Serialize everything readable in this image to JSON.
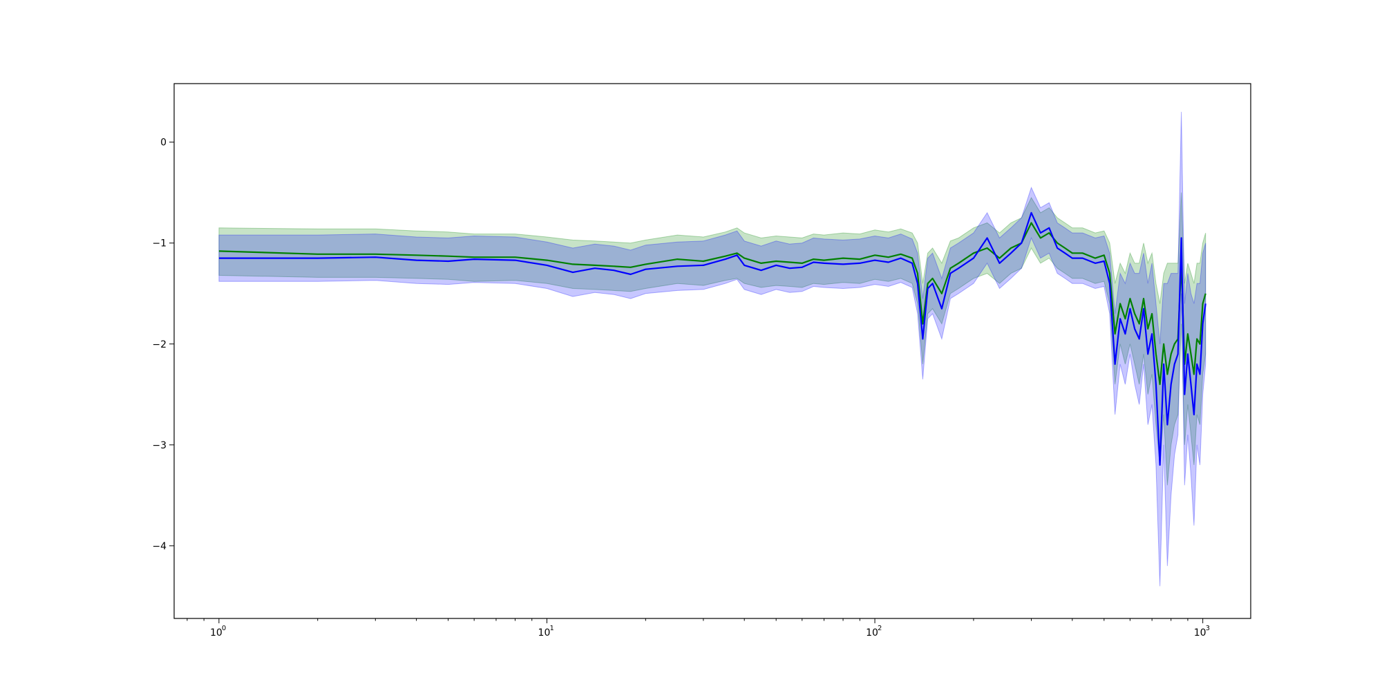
{
  "chart_data": {
    "type": "line",
    "title": "",
    "xlabel": "",
    "ylabel": "",
    "xscale": "log",
    "xlim": [
      0.73,
      1400
    ],
    "ylim": [
      -4.72,
      0.58
    ],
    "grid": false,
    "legend": "none",
    "x_ticks": [
      {
        "value": 1,
        "base": "10",
        "exp": "0"
      },
      {
        "value": 10,
        "base": "10",
        "exp": "1"
      },
      {
        "value": 100,
        "base": "10",
        "exp": "2"
      },
      {
        "value": 1000,
        "base": "10",
        "exp": "3"
      }
    ],
    "y_ticks": [
      {
        "value": 0,
        "label": "0"
      },
      {
        "value": -1,
        "label": "−1"
      },
      {
        "value": -2,
        "label": "−2"
      },
      {
        "value": -3,
        "label": "−3"
      },
      {
        "value": -4,
        "label": "−4"
      }
    ],
    "series": [
      {
        "color": "#008000",
        "band_color": "#008000",
        "band_opacity": 0.22,
        "x": [
          1,
          2,
          3,
          4,
          5,
          6,
          8,
          10,
          12,
          14,
          16,
          18,
          20,
          25,
          30,
          35,
          38,
          40,
          45,
          50,
          55,
          60,
          65,
          70,
          80,
          90,
          100,
          110,
          120,
          130,
          135,
          140,
          145,
          150,
          160,
          170,
          180,
          200,
          220,
          240,
          260,
          280,
          300,
          320,
          340,
          360,
          380,
          400,
          430,
          470,
          500,
          520,
          540,
          560,
          580,
          600,
          620,
          640,
          660,
          680,
          700,
          720,
          740,
          760,
          780,
          800,
          820,
          840,
          860,
          880,
          900,
          920,
          940,
          960,
          980,
          1000,
          1020
        ],
        "values": [
          -1.08,
          -1.11,
          -1.11,
          -1.12,
          -1.13,
          -1.14,
          -1.14,
          -1.17,
          -1.21,
          -1.22,
          -1.23,
          -1.24,
          -1.21,
          -1.16,
          -1.18,
          -1.13,
          -1.1,
          -1.15,
          -1.2,
          -1.18,
          -1.19,
          -1.2,
          -1.16,
          -1.17,
          -1.15,
          -1.16,
          -1.12,
          -1.14,
          -1.11,
          -1.15,
          -1.3,
          -1.8,
          -1.4,
          -1.35,
          -1.5,
          -1.25,
          -1.2,
          -1.1,
          -1.05,
          -1.15,
          -1.05,
          -1.0,
          -0.8,
          -0.95,
          -0.9,
          -1.0,
          -1.05,
          -1.1,
          -1.1,
          -1.15,
          -1.12,
          -1.3,
          -1.9,
          -1.6,
          -1.75,
          -1.55,
          -1.7,
          -1.8,
          -1.55,
          -1.85,
          -1.7,
          -2.1,
          -2.4,
          -2.0,
          -2.3,
          -2.1,
          -2.0,
          -1.95,
          -1.2,
          -2.2,
          -1.9,
          -2.1,
          -2.3,
          -1.95,
          -2.0,
          -1.6,
          -1.5
        ],
        "lower": [
          -1.32,
          -1.34,
          -1.34,
          -1.35,
          -1.36,
          -1.38,
          -1.37,
          -1.4,
          -1.45,
          -1.46,
          -1.47,
          -1.48,
          -1.45,
          -1.4,
          -1.42,
          -1.37,
          -1.35,
          -1.4,
          -1.44,
          -1.42,
          -1.43,
          -1.44,
          -1.4,
          -1.41,
          -1.39,
          -1.4,
          -1.36,
          -1.38,
          -1.35,
          -1.4,
          -1.6,
          -2.2,
          -1.7,
          -1.65,
          -1.8,
          -1.5,
          -1.45,
          -1.35,
          -1.3,
          -1.4,
          -1.3,
          -1.25,
          -1.05,
          -1.2,
          -1.15,
          -1.25,
          -1.3,
          -1.35,
          -1.35,
          -1.4,
          -1.38,
          -1.6,
          -2.4,
          -2.0,
          -2.2,
          -2.0,
          -2.2,
          -2.4,
          -2.1,
          -2.5,
          -2.3,
          -2.8,
          -3.2,
          -2.7,
          -3.4,
          -3.0,
          -2.8,
          -2.7,
          -1.8,
          -3.0,
          -2.6,
          -2.9,
          -3.2,
          -2.7,
          -2.8,
          -2.3,
          -2.1
        ],
        "upper": [
          -0.85,
          -0.86,
          -0.86,
          -0.88,
          -0.89,
          -0.91,
          -0.91,
          -0.94,
          -0.97,
          -0.98,
          -0.99,
          -1.0,
          -0.97,
          -0.92,
          -0.94,
          -0.89,
          -0.85,
          -0.9,
          -0.95,
          -0.93,
          -0.94,
          -0.95,
          -0.91,
          -0.92,
          -0.9,
          -0.91,
          -0.87,
          -0.89,
          -0.86,
          -0.9,
          -1.0,
          -1.4,
          -1.1,
          -1.05,
          -1.2,
          -0.98,
          -0.95,
          -0.85,
          -0.8,
          -0.9,
          -0.8,
          -0.75,
          -0.55,
          -0.7,
          -0.65,
          -0.75,
          -0.8,
          -0.85,
          -0.85,
          -0.9,
          -0.88,
          -1.0,
          -1.4,
          -1.2,
          -1.3,
          -1.1,
          -1.2,
          -1.2,
          -1.0,
          -1.2,
          -1.1,
          -1.4,
          -1.6,
          -1.3,
          -1.2,
          -1.2,
          -1.2,
          -1.2,
          -0.5,
          -1.4,
          -1.2,
          -1.3,
          -1.4,
          -1.2,
          -1.2,
          -1.0,
          -0.9
        ]
      },
      {
        "color": "#0000ff",
        "band_color": "#0000ff",
        "band_opacity": 0.22,
        "x": [
          1,
          2,
          3,
          4,
          5,
          6,
          8,
          10,
          12,
          14,
          16,
          18,
          20,
          25,
          30,
          35,
          38,
          40,
          45,
          50,
          55,
          60,
          65,
          70,
          80,
          90,
          100,
          110,
          120,
          130,
          135,
          140,
          145,
          150,
          160,
          170,
          180,
          200,
          220,
          240,
          260,
          280,
          300,
          320,
          340,
          360,
          380,
          400,
          430,
          470,
          500,
          520,
          540,
          560,
          580,
          600,
          620,
          640,
          660,
          680,
          700,
          720,
          740,
          760,
          780,
          800,
          820,
          840,
          860,
          880,
          900,
          920,
          940,
          960,
          980,
          1000,
          1020
        ],
        "values": [
          -1.15,
          -1.15,
          -1.14,
          -1.17,
          -1.18,
          -1.16,
          -1.17,
          -1.22,
          -1.29,
          -1.25,
          -1.27,
          -1.31,
          -1.26,
          -1.23,
          -1.22,
          -1.16,
          -1.12,
          -1.22,
          -1.27,
          -1.22,
          -1.25,
          -1.24,
          -1.19,
          -1.2,
          -1.21,
          -1.2,
          -1.17,
          -1.19,
          -1.15,
          -1.2,
          -1.4,
          -1.95,
          -1.45,
          -1.4,
          -1.65,
          -1.3,
          -1.25,
          -1.15,
          -0.95,
          -1.2,
          -1.1,
          -1.0,
          -0.7,
          -0.9,
          -0.85,
          -1.05,
          -1.1,
          -1.15,
          -1.15,
          -1.2,
          -1.18,
          -1.4,
          -2.2,
          -1.75,
          -1.9,
          -1.65,
          -1.85,
          -1.95,
          -1.65,
          -2.1,
          -1.9,
          -2.4,
          -3.2,
          -2.2,
          -2.8,
          -2.4,
          -2.2,
          -2.1,
          -0.95,
          -2.5,
          -2.1,
          -2.4,
          -2.7,
          -2.2,
          -2.3,
          -1.8,
          -1.6
        ],
        "lower": [
          -1.38,
          -1.38,
          -1.37,
          -1.4,
          -1.41,
          -1.39,
          -1.4,
          -1.45,
          -1.53,
          -1.49,
          -1.51,
          -1.55,
          -1.5,
          -1.47,
          -1.46,
          -1.4,
          -1.36,
          -1.46,
          -1.51,
          -1.46,
          -1.49,
          -1.48,
          -1.43,
          -1.44,
          -1.45,
          -1.44,
          -1.41,
          -1.43,
          -1.39,
          -1.44,
          -1.7,
          -2.35,
          -1.75,
          -1.7,
          -1.95,
          -1.55,
          -1.5,
          -1.4,
          -1.2,
          -1.45,
          -1.35,
          -1.25,
          -0.95,
          -1.15,
          -1.1,
          -1.3,
          -1.35,
          -1.4,
          -1.4,
          -1.45,
          -1.43,
          -1.7,
          -2.7,
          -2.2,
          -2.4,
          -2.1,
          -2.4,
          -2.6,
          -2.2,
          -2.8,
          -2.6,
          -3.2,
          -4.4,
          -3.0,
          -4.2,
          -3.5,
          -3.1,
          -2.9,
          -1.5,
          -3.4,
          -2.9,
          -3.3,
          -3.8,
          -3.0,
          -3.2,
          -2.5,
          -2.2
        ],
        "upper": [
          -0.92,
          -0.92,
          -0.91,
          -0.94,
          -0.95,
          -0.93,
          -0.94,
          -0.99,
          -1.05,
          -1.01,
          -1.03,
          -1.07,
          -1.02,
          -0.99,
          -0.98,
          -0.92,
          -0.88,
          -0.98,
          -1.03,
          -0.98,
          -1.01,
          -1.0,
          -0.95,
          -0.96,
          -0.97,
          -0.96,
          -0.93,
          -0.95,
          -0.91,
          -0.96,
          -1.1,
          -1.55,
          -1.15,
          -1.1,
          -1.35,
          -1.05,
          -1.0,
          -0.9,
          -0.7,
          -0.95,
          -0.85,
          -0.75,
          -0.45,
          -0.65,
          -0.6,
          -0.8,
          -0.85,
          -0.9,
          -0.9,
          -0.95,
          -0.93,
          -1.1,
          -1.7,
          -1.3,
          -1.4,
          -1.2,
          -1.3,
          -1.3,
          -1.1,
          -1.4,
          -1.2,
          -1.6,
          -2.0,
          -1.4,
          -1.4,
          -1.3,
          -1.3,
          -1.3,
          0.3,
          -1.6,
          -1.3,
          -1.5,
          -1.6,
          -1.4,
          -1.4,
          -1.1,
          -1.0
        ]
      }
    ]
  }
}
